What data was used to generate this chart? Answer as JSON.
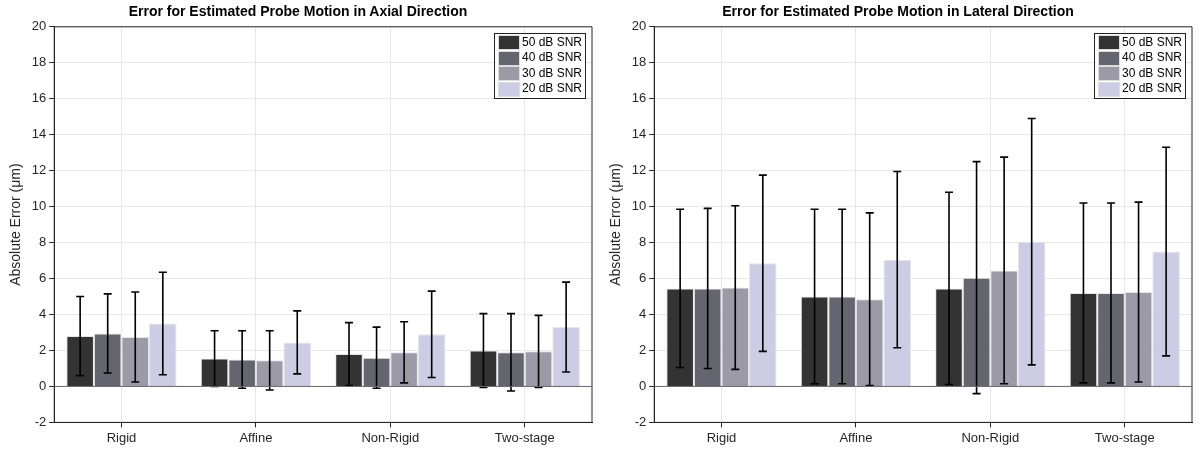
{
  "chart_data": [
    {
      "type": "bar",
      "title": "Error for Estimated Probe Motion in Axial Direction",
      "ylabel": "Absolute Error (μm)",
      "categories": [
        "Rigid",
        "Affine",
        "Non-Rigid",
        "Two-stage"
      ],
      "ylim": [
        -2,
        20
      ],
      "yticks": [
        -2,
        0,
        2,
        4,
        6,
        8,
        10,
        12,
        14,
        16,
        18,
        20
      ],
      "grid": true,
      "legend": "top right",
      "series": [
        {
          "name": "50 dB SNR",
          "color": "#333333",
          "values": [
            2.8,
            1.55,
            1.8,
            2.0
          ],
          "errors": [
            2.2,
            1.55,
            1.75,
            2.05
          ]
        },
        {
          "name": "40 dB SNR",
          "color": "#65656f",
          "values": [
            2.95,
            1.5,
            1.6,
            1.9
          ],
          "errors": [
            2.2,
            1.6,
            1.7,
            2.15
          ]
        },
        {
          "name": "30 dB SNR",
          "color": "#9b9aa6",
          "values": [
            2.75,
            1.45,
            1.9,
            1.95
          ],
          "errors": [
            2.5,
            1.65,
            1.7,
            2.0
          ]
        },
        {
          "name": "20 dB SNR",
          "color": "#cccce4",
          "values": [
            3.5,
            2.45,
            2.9,
            3.3
          ],
          "errors": [
            2.85,
            1.75,
            2.4,
            2.5
          ]
        }
      ]
    },
    {
      "type": "bar",
      "title": "Error for Estimated Probe Motion in Lateral Direction",
      "ylabel": "Absolute Error (μm)",
      "categories": [
        "Rigid",
        "Affine",
        "Non-Rigid",
        "Two-stage"
      ],
      "ylim": [
        -2,
        20
      ],
      "yticks": [
        -2,
        0,
        2,
        4,
        6,
        8,
        10,
        12,
        14,
        16,
        18,
        20
      ],
      "grid": true,
      "legend": "top right",
      "series": [
        {
          "name": "50 dB SNR",
          "color": "#333333",
          "values": [
            5.45,
            5.0,
            5.45,
            5.2
          ],
          "errors": [
            4.4,
            4.85,
            5.35,
            5.0
          ]
        },
        {
          "name": "40 dB SNR",
          "color": "#65656f",
          "values": [
            5.45,
            5.0,
            6.05,
            5.2
          ],
          "errors": [
            4.45,
            4.85,
            6.45,
            5.0
          ]
        },
        {
          "name": "30 dB SNR",
          "color": "#9b9aa6",
          "values": [
            5.5,
            4.85,
            6.45,
            5.25
          ],
          "errors": [
            4.55,
            4.8,
            6.3,
            5.0
          ]
        },
        {
          "name": "20 dB SNR",
          "color": "#cccce4",
          "values": [
            6.85,
            7.05,
            8.05,
            7.5
          ],
          "errors": [
            4.9,
            4.9,
            6.85,
            5.8
          ]
        }
      ]
    }
  ]
}
